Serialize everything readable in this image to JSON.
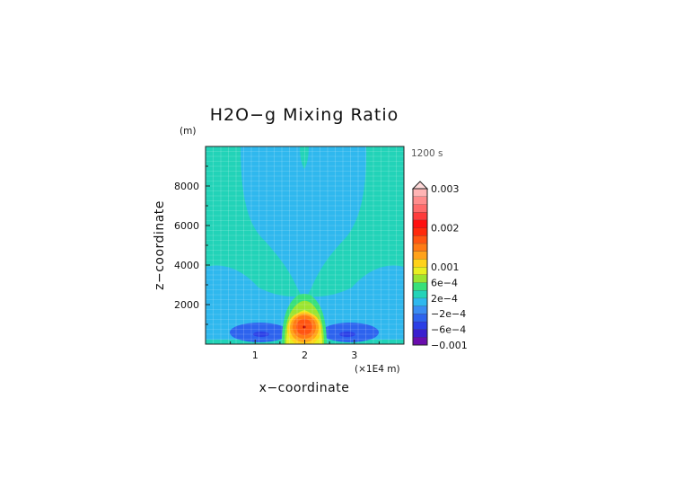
{
  "chart_data": {
    "type": "contour",
    "title": "H2O−g Mixing Ratio",
    "time_label": "1200 s",
    "xlabel": "x−coordinate",
    "ylabel": "z−coordinate",
    "y_unit": "(m)",
    "x_unit": "(×1E4 m)",
    "xlim": [
      0,
      4
    ],
    "ylim": [
      0,
      10000
    ],
    "x_ticks": [
      1,
      2,
      3
    ],
    "x_tick_labels": [
      "1",
      "2",
      "3"
    ],
    "y_ticks": [
      2000,
      4000,
      6000,
      8000
    ],
    "y_tick_labels": [
      "2000",
      "4000",
      "6000",
      "8000"
    ],
    "grid": true,
    "colorbar": {
      "position": "right",
      "levels": [
        -0.001,
        -0.0008,
        -0.0006,
        -0.0004,
        -0.0002,
        0,
        0.0002,
        0.0004,
        0.0006,
        0.0008,
        0.001,
        0.0012,
        0.0014,
        0.0016,
        0.0018,
        0.002,
        0.0022,
        0.0024,
        0.0026,
        0.0028,
        0.003
      ],
      "colors": [
        "#6a0dad",
        "#3a1fcf",
        "#2b3fe6",
        "#2d63ee",
        "#3a8cf2",
        "#2fb8ee",
        "#22d3b8",
        "#37e07a",
        "#9be431",
        "#e8ef22",
        "#ffd21a",
        "#ffa21a",
        "#ff7a14",
        "#ff5511",
        "#ff2a0c",
        "#ff1010",
        "#ff3b3b",
        "#ff6a6a",
        "#ff8c8c",
        "#ffb4b4"
      ],
      "tick_labels": [
        "0.003",
        "0.002",
        "0.001",
        "6e−4",
        "2e−4",
        "−2e−4",
        "−6e−4",
        "−0.001"
      ],
      "tick_values": [
        0.003,
        0.002,
        0.001,
        0.0006,
        0.0002,
        -0.0002,
        -0.0006,
        -0.001
      ]
    },
    "features": [
      {
        "kind": "max",
        "x": 2.0,
        "z": 900,
        "value": 0.0016
      },
      {
        "kind": "min",
        "x": 1.0,
        "z": 500,
        "value": -0.0008
      },
      {
        "kind": "min",
        "x": 2.9,
        "z": 500,
        "value": -0.0008
      }
    ]
  }
}
